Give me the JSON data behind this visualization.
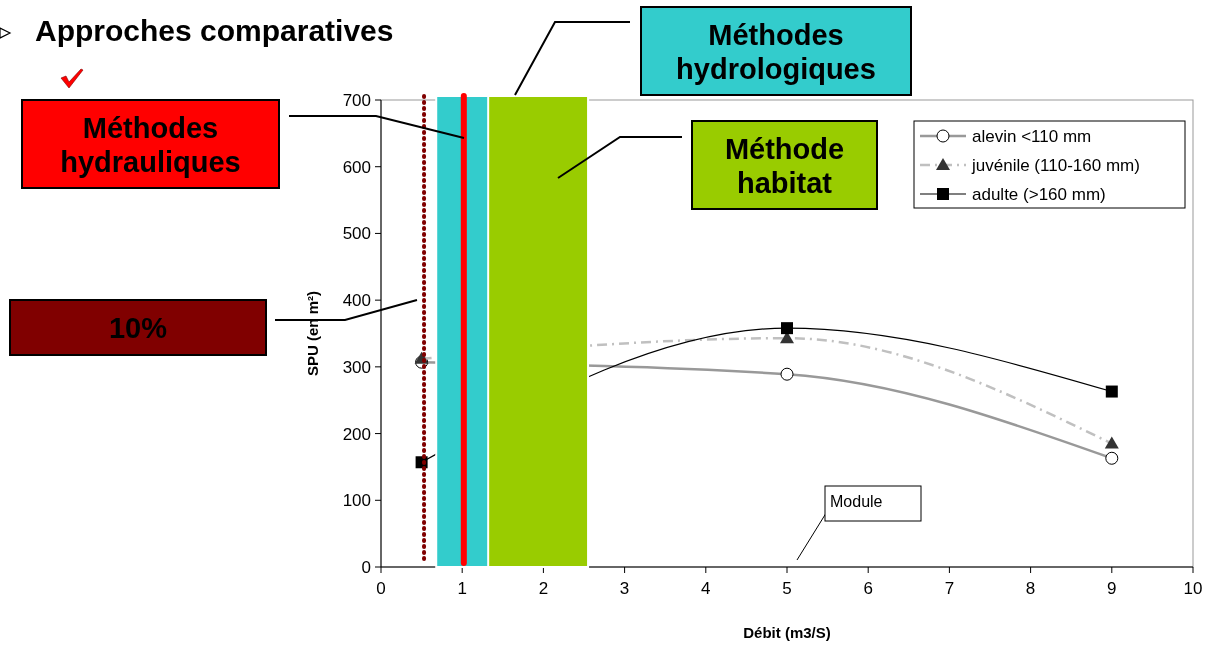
{
  "chart_data": {
    "type": "line",
    "title": "Approches comparatives",
    "xlabel": "Débit (m3/S)",
    "ylabel": "SPU (en m²)",
    "xlim": [
      0,
      10
    ],
    "xticks": [
      0,
      1,
      2,
      3,
      4,
      5,
      6,
      7,
      8,
      9,
      10
    ],
    "ylim": [
      0,
      700
    ],
    "yticks": [
      0,
      100,
      200,
      300,
      400,
      500,
      600,
      700
    ],
    "legend": "top right",
    "grid": false,
    "series": [
      {
        "name": "alevin <110 mm",
        "color": "#999999",
        "marker": "circle",
        "line_style": "solid",
        "x": [
          0.5,
          5,
          9
        ],
        "values": [
          307,
          289,
          163
        ]
      },
      {
        "name": "juvénile (110-160 mm)",
        "color": "#c0c0c0",
        "marker": "triangle",
        "line_style": "dashdot",
        "x": [
          0.5,
          5,
          9
        ],
        "values": [
          312,
          343,
          185
        ]
      },
      {
        "name": "adulte (>160 mm)",
        "color": "#000000",
        "marker": "square",
        "line_style": "solid",
        "x": [
          0.5,
          5,
          9
        ],
        "values": [
          157,
          358,
          263
        ]
      }
    ],
    "bands": [
      {
        "axis": "x",
        "from": 0.68,
        "to": 1.39,
        "color": "#33cccc"
      },
      {
        "axis": "x",
        "from": 1.32,
        "to": 2.55,
        "color": "#99cc00"
      }
    ],
    "ref_lines": [
      {
        "axis": "x",
        "value": 1.02,
        "color": "#ff0000",
        "line_style": "solid"
      },
      {
        "axis": "x",
        "value": 0.53,
        "color": "#800000",
        "line_style": "dotted"
      }
    ],
    "annotations": [
      "Méthodes hydrauliques",
      "Méthodes hydrologiques",
      "Méthode habitat",
      "10%",
      "Module"
    ]
  }
}
